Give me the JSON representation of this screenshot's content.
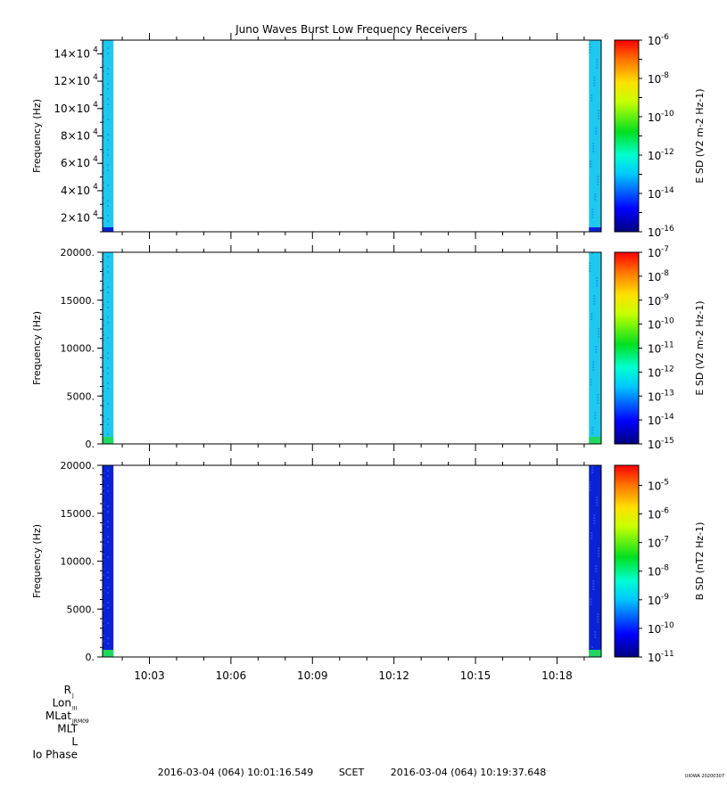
{
  "title": "Juno Waves Burst Low Frequency Receivers",
  "time_axis": {
    "start": "10:01:16.549",
    "end": "10:19:37.648",
    "ticks": [
      "10:03",
      "10:06",
      "10:09",
      "10:12",
      "10:15",
      "10:18"
    ],
    "tick_minutes": [
      3,
      6,
      9,
      12,
      15,
      18
    ]
  },
  "ephemeris_labels": [
    {
      "main": "R",
      "sub": "J"
    },
    {
      "main": "Lon",
      "sub": "III"
    },
    {
      "main": "MLat",
      "sub": "JRM09"
    },
    {
      "main": "MLT",
      "sub": ""
    },
    {
      "main": "L",
      "sub": ""
    },
    {
      "main": "Io Phase",
      "sub": ""
    }
  ],
  "footer": {
    "start": "2016-03-04 (064) 10:01:16.549",
    "scet": "SCET",
    "end": "2016-03-04 (064) 10:19:37.648",
    "version": "UIOWA 20200307"
  },
  "colors": {
    "spectrogram_blue": "#0a22d6",
    "spectrogram_cyan": "#1fc8ee",
    "spectrogram_green": "#20d860"
  },
  "chart_data": [
    {
      "type": "heatmap",
      "panel": "top",
      "ylabel": "Frequency (Hz)",
      "yticks": [
        {
          "mant": "2",
          "exp": "4",
          "value": 20000
        },
        {
          "mant": "4",
          "exp": "4",
          "value": 40000
        },
        {
          "mant": "6",
          "exp": "4",
          "value": 60000
        },
        {
          "mant": "8",
          "exp": "4",
          "value": 80000
        },
        {
          "mant": "10",
          "exp": "4",
          "value": 100000
        },
        {
          "mant": "12",
          "exp": "4",
          "value": 120000
        },
        {
          "mant": "14",
          "exp": "4",
          "value": 140000
        }
      ],
      "ylim": [
        10000,
        150000
      ],
      "colorbar_label": "E SD (V2 m-2 Hz-1)",
      "colorbar_ticks": [
        "-6",
        "-8",
        "-10",
        "-12",
        "-14",
        "-16"
      ],
      "colorbar_range_log": [
        -16,
        -6
      ],
      "data_columns": [
        {
          "start_min": 0.0,
          "end_min": 0.4,
          "level": "cyan",
          "low_band_level": "blue"
        },
        {
          "start_min": 17.9,
          "end_min": 18.35,
          "level": "cyan",
          "low_band_level": "blue"
        }
      ]
    },
    {
      "type": "heatmap",
      "panel": "middle",
      "ylabel": "Frequency (Hz)",
      "yticks": [
        "0.",
        "5000.",
        "10000.",
        "15000.",
        "20000."
      ],
      "ytick_values": [
        0,
        5000,
        10000,
        15000,
        20000
      ],
      "ylim": [
        0,
        20000
      ],
      "colorbar_label": "E SD (V2 m-2 Hz-1)",
      "colorbar_ticks": [
        "-7",
        "-8",
        "-9",
        "-10",
        "-11",
        "-12",
        "-13",
        "-14",
        "-15"
      ],
      "colorbar_range_log": [
        -15,
        -7
      ],
      "data_columns": [
        {
          "start_min": 0.0,
          "end_min": 0.4,
          "level": "cyan",
          "low_band_level": "green"
        },
        {
          "start_min": 17.9,
          "end_min": 18.35,
          "level": "cyan",
          "low_band_level": "green"
        }
      ]
    },
    {
      "type": "heatmap",
      "panel": "bottom",
      "ylabel": "Frequency (Hz)",
      "yticks": [
        "0.",
        "5000.",
        "10000.",
        "15000.",
        "20000."
      ],
      "ytick_values": [
        0,
        5000,
        10000,
        15000,
        20000
      ],
      "ylim": [
        0,
        20000
      ],
      "colorbar_label": "B SD (nT2 Hz-1)",
      "colorbar_ticks": [
        "-5",
        "-6",
        "-7",
        "-8",
        "-9",
        "-10",
        "-11"
      ],
      "colorbar_range_log": [
        -11,
        -4.3
      ],
      "data_columns": [
        {
          "start_min": 0.0,
          "end_min": 0.4,
          "level": "blue",
          "low_band_level": "green"
        },
        {
          "start_min": 17.9,
          "end_min": 18.35,
          "level": "blue",
          "low_band_level": "green"
        }
      ]
    }
  ]
}
